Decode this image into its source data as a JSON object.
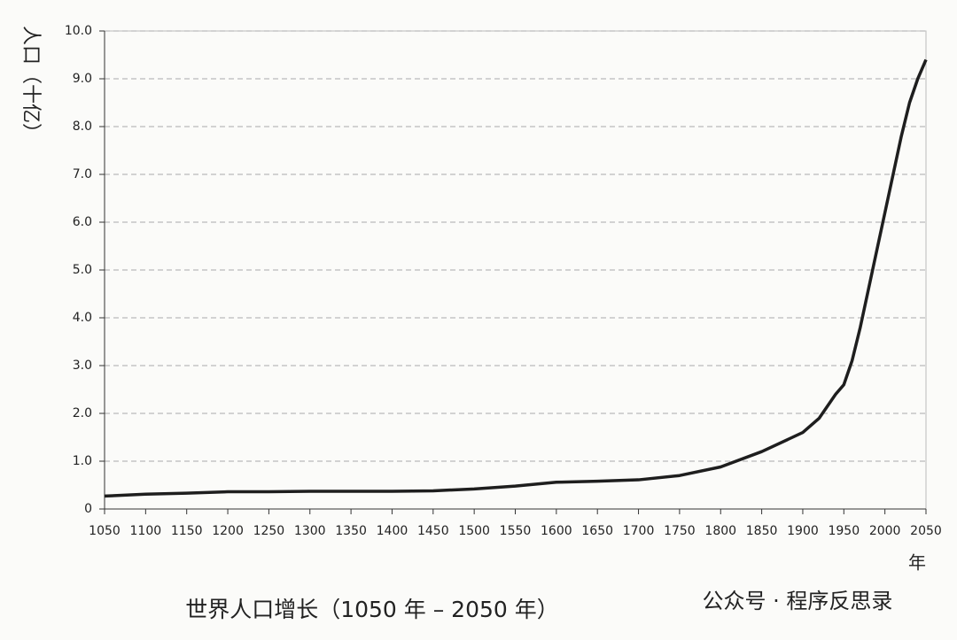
{
  "chart_data": {
    "type": "line",
    "title": "世界人口增长（1050 年 – 2050 年）",
    "y_label": "人口（十亿）",
    "x_label": "年",
    "watermark": "公众号 · 程序反思录",
    "x": [
      1050,
      1100,
      1150,
      1200,
      1250,
      1300,
      1350,
      1400,
      1450,
      1500,
      1550,
      1600,
      1650,
      1700,
      1750,
      1800,
      1850,
      1900,
      1920,
      1940,
      1950,
      1960,
      1970,
      1980,
      1990,
      2000,
      2010,
      2020,
      2030,
      2040,
      2050
    ],
    "series": [
      {
        "color": "#1e1e1e",
        "values": [
          0.27,
          0.31,
          0.33,
          0.36,
          0.36,
          0.37,
          0.37,
          0.37,
          0.38,
          0.42,
          0.48,
          0.56,
          0.58,
          0.61,
          0.7,
          0.88,
          1.2,
          1.6,
          1.9,
          2.4,
          2.6,
          3.1,
          3.8,
          4.6,
          5.4,
          6.2,
          7.0,
          7.8,
          8.5,
          9.0,
          9.4
        ]
      }
    ],
    "xlim": [
      1050,
      2050
    ],
    "xticks": [
      1050,
      1100,
      1150,
      1200,
      1250,
      1300,
      1350,
      1400,
      1450,
      1500,
      1550,
      1600,
      1650,
      1700,
      1750,
      1800,
      1850,
      1900,
      1950,
      2000,
      2050
    ],
    "ylim": [
      0,
      10
    ],
    "yticks": [
      0,
      {
        "value": 1,
        "label": "1.0"
      },
      {
        "value": 2,
        "label": "2.0"
      },
      {
        "value": 3,
        "label": "3.0"
      },
      {
        "value": 4,
        "label": "4.0"
      },
      {
        "value": 5,
        "label": "5.0"
      },
      {
        "value": 6,
        "label": "6.0"
      },
      {
        "value": 7,
        "label": "7.0"
      },
      {
        "value": 8,
        "label": "8.0"
      },
      {
        "value": 9,
        "label": "9.0"
      },
      {
        "value": 10,
        "label": "10.0"
      }
    ],
    "grid": true
  }
}
